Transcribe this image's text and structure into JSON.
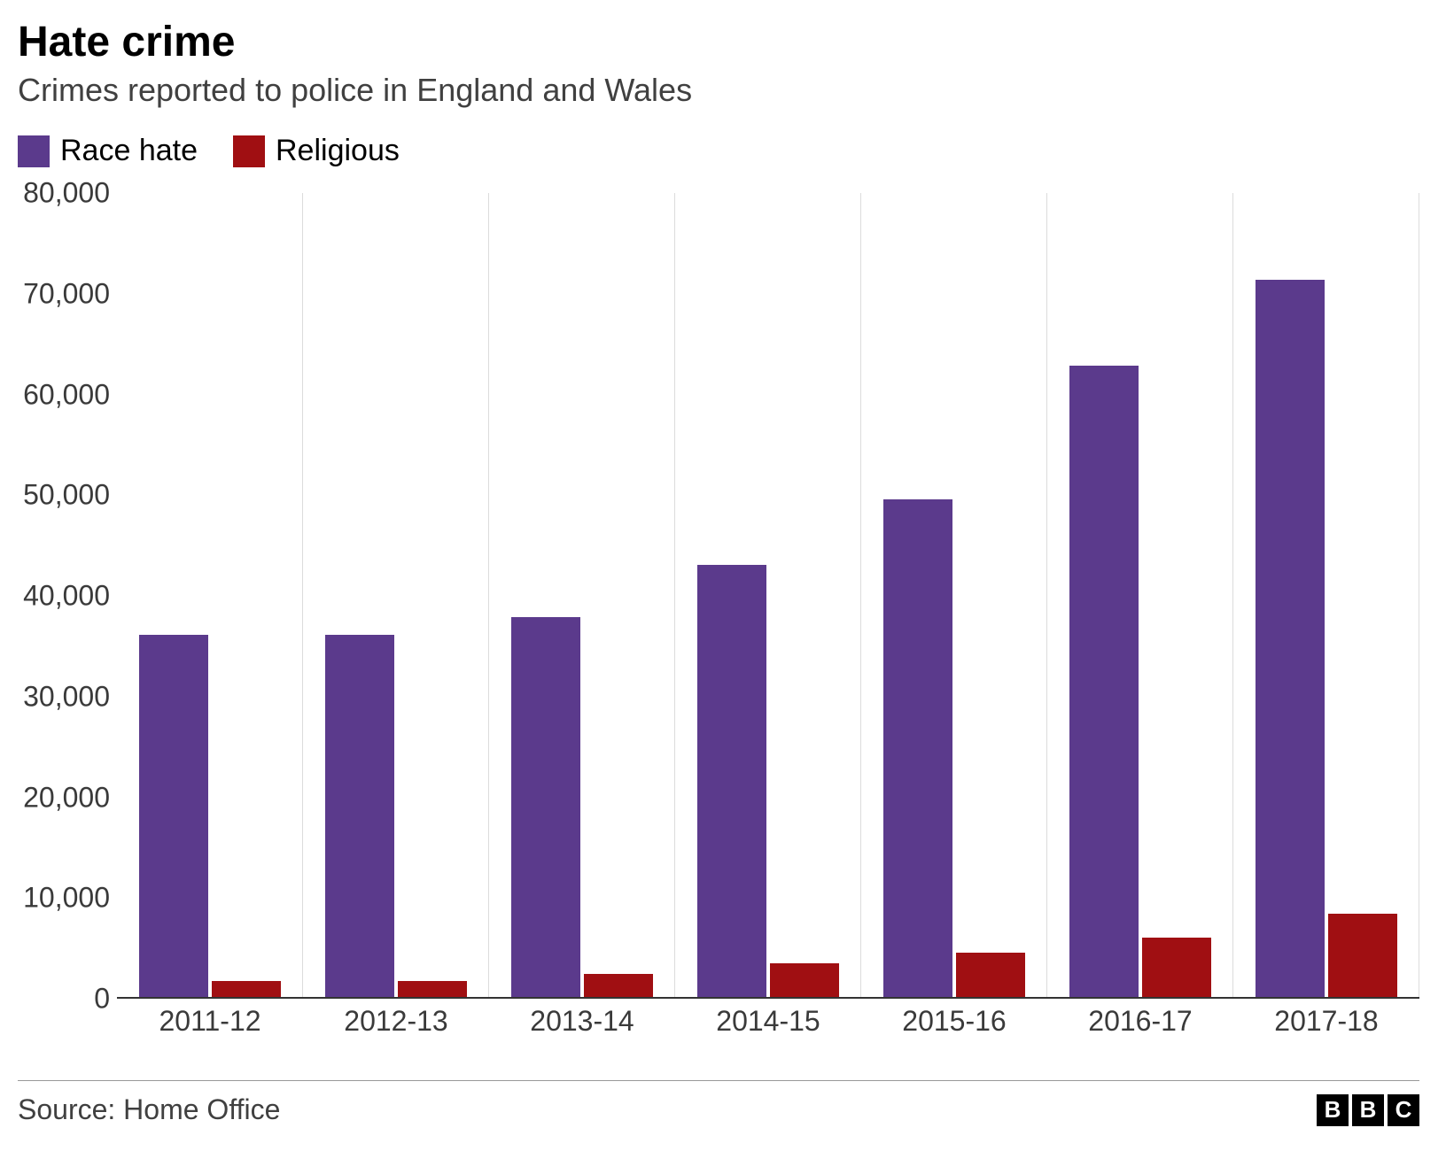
{
  "title": "Hate crime",
  "subtitle": "Crimes reported to police in England and Wales",
  "source": "Source: Home Office",
  "logo": [
    "B",
    "B",
    "C"
  ],
  "chart": {
    "type": "bar",
    "background_color": "#ffffff",
    "grid_color": "#dcdcdc",
    "axis_color": "#333333",
    "text_color": "#3a3a3a",
    "title_fontsize": 48,
    "subtitle_fontsize": 36,
    "label_fontsize": 32,
    "categories": [
      "2011-12",
      "2012-13",
      "2013-14",
      "2014-15",
      "2015-16",
      "2016-17",
      "2017-18"
    ],
    "series": [
      {
        "name": "Race hate",
        "color": "#5b3a8c",
        "values": [
          36000,
          36000,
          37700,
          42900,
          49400,
          62700,
          71200
        ]
      },
      {
        "name": "Religious",
        "color": "#a00f12",
        "values": [
          1600,
          1600,
          2300,
          3300,
          4400,
          5900,
          8300
        ]
      }
    ],
    "ylim": [
      0,
      80000
    ],
    "ytick_step": 10000,
    "ytick_labels": [
      "0",
      "10,000",
      "20,000",
      "30,000",
      "40,000",
      "50,000",
      "60,000",
      "70,000",
      "80,000"
    ],
    "bar_width": 0.37,
    "group_gap": 0.02
  }
}
